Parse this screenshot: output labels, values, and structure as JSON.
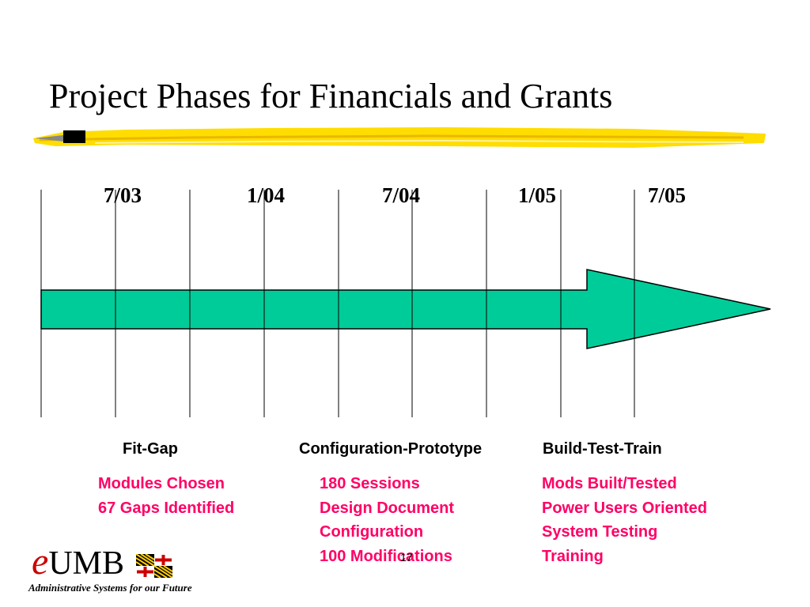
{
  "slide": {
    "title": "Project Phases for Financials and Grants",
    "slide_number": "17"
  },
  "timeline": {
    "dates": [
      "7/03",
      "1/04",
      "7/04",
      "1/05",
      "7/05"
    ],
    "arrow_color": "#00cc99"
  },
  "phases": [
    {
      "name": "Fit-Gap",
      "items": [
        "Modules Chosen",
        "67 Gaps Identified"
      ]
    },
    {
      "name": "Configuration-Prototype",
      "items": [
        "180 Sessions",
        "Design Document",
        "Configuration",
        "100 Modifications"
      ]
    },
    {
      "name": "Build-Test-Train",
      "items": [
        "Mods Built/Tested",
        "Power Users Oriented",
        "System Testing",
        "Training"
      ]
    }
  ],
  "logo": {
    "e": "e",
    "name": "UMB",
    "tagline": "Administrative Systems for our Future"
  },
  "colors": {
    "detail_text": "#ff0066",
    "highlight": "#ffdd00"
  }
}
